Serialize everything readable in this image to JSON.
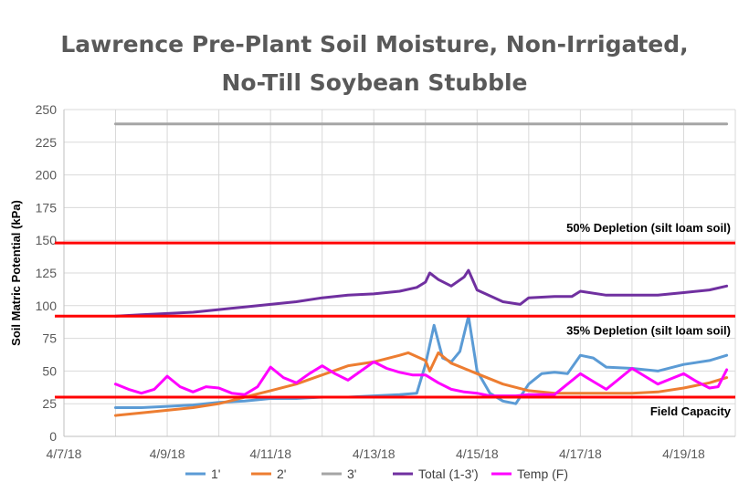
{
  "chart_data": {
    "type": "line",
    "title": [
      "Lawrence Pre-Plant Soil Moisture, Non-Irrigated,",
      "No-Till Soybean Stubble"
    ],
    "xlabel": "",
    "ylabel": "Soil Matric Potential (kPa)",
    "ylim": [
      0,
      250
    ],
    "yticks": [
      0,
      25,
      50,
      75,
      100,
      125,
      150,
      175,
      200,
      225,
      250
    ],
    "xlim": [
      "2018-04-07",
      "2018-04-20"
    ],
    "xticks": [
      "4/7/18",
      "4/9/18",
      "4/11/18",
      "4/13/18",
      "4/15/18",
      "4/17/18",
      "4/19/18"
    ],
    "grid": true,
    "legend_position": "bottom",
    "reference_lines": [
      {
        "value": 148,
        "label": "50% Depletion (silt loam soil)",
        "color": "#ff0000"
      },
      {
        "value": 92,
        "label": "35% Depletion (silt loam soil)",
        "color": "#ff0000"
      },
      {
        "value": 30,
        "label": "Field Capacity",
        "color": "#ff0000"
      }
    ],
    "series": [
      {
        "name": "1'",
        "color": "#5b9bd5",
        "points": [
          [
            "2018-04-08",
            22
          ],
          [
            "2018-04-08 12:00",
            22
          ],
          [
            "2018-04-09",
            23
          ],
          [
            "2018-04-09 12:00",
            24
          ],
          [
            "2018-04-10",
            26
          ],
          [
            "2018-04-10 12:00",
            27
          ],
          [
            "2018-04-11",
            29
          ],
          [
            "2018-04-11 12:00",
            29
          ],
          [
            "2018-04-12",
            30
          ],
          [
            "2018-04-12 12:00",
            30
          ],
          [
            "2018-04-13",
            31
          ],
          [
            "2018-04-13 12:00",
            32
          ],
          [
            "2018-04-13 20:00",
            33
          ],
          [
            "2018-04-14 00:00",
            55
          ],
          [
            "2018-04-14 04:00",
            85
          ],
          [
            "2018-04-14 08:00",
            60
          ],
          [
            "2018-04-14 12:00",
            57
          ],
          [
            "2018-04-14 16:00",
            65
          ],
          [
            "2018-04-14 20:00",
            92
          ],
          [
            "2018-04-15 00:00",
            50
          ],
          [
            "2018-04-15 06:00",
            33
          ],
          [
            "2018-04-15 12:00",
            27
          ],
          [
            "2018-04-15 18:00",
            25
          ],
          [
            "2018-04-16 00:00",
            40
          ],
          [
            "2018-04-16 06:00",
            48
          ],
          [
            "2018-04-16 12:00",
            49
          ],
          [
            "2018-04-16 18:00",
            48
          ],
          [
            "2018-04-17 00:00",
            62
          ],
          [
            "2018-04-17 06:00",
            60
          ],
          [
            "2018-04-17 12:00",
            53
          ],
          [
            "2018-04-18",
            52
          ],
          [
            "2018-04-18 12:00",
            50
          ],
          [
            "2018-04-19",
            55
          ],
          [
            "2018-04-19 12:00",
            58
          ],
          [
            "2018-04-19 20:00",
            62
          ]
        ]
      },
      {
        "name": "2'",
        "color": "#ed7d31",
        "points": [
          [
            "2018-04-08",
            16
          ],
          [
            "2018-04-08 12:00",
            18
          ],
          [
            "2018-04-09",
            20
          ],
          [
            "2018-04-09 12:00",
            22
          ],
          [
            "2018-04-10",
            25
          ],
          [
            "2018-04-10 12:00",
            30
          ],
          [
            "2018-04-11",
            35
          ],
          [
            "2018-04-11 12:00",
            40
          ],
          [
            "2018-04-12",
            47
          ],
          [
            "2018-04-12 12:00",
            54
          ],
          [
            "2018-04-13",
            57
          ],
          [
            "2018-04-13 12:00",
            62
          ],
          [
            "2018-04-13 16:00",
            64
          ],
          [
            "2018-04-14",
            58
          ],
          [
            "2018-04-14 02:00",
            50
          ],
          [
            "2018-04-14 06:00",
            64
          ],
          [
            "2018-04-14 12:00",
            56
          ],
          [
            "2018-04-15",
            48
          ],
          [
            "2018-04-15 12:00",
            40
          ],
          [
            "2018-04-16",
            35
          ],
          [
            "2018-04-16 12:00",
            33
          ],
          [
            "2018-04-17",
            33
          ],
          [
            "2018-04-17 12:00",
            33
          ],
          [
            "2018-04-18",
            33
          ],
          [
            "2018-04-18 12:00",
            34
          ],
          [
            "2018-04-19",
            37
          ],
          [
            "2018-04-19 12:00",
            41
          ],
          [
            "2018-04-19 20:00",
            45
          ]
        ]
      },
      {
        "name": "3'",
        "color": "#a5a5a5",
        "points": [
          [
            "2018-04-08",
            239
          ],
          [
            "2018-04-19 20:00",
            239
          ]
        ]
      },
      {
        "name": "Total (1-3')",
        "color": "#7030a0",
        "points": [
          [
            "2018-04-08",
            92
          ],
          [
            "2018-04-08 12:00",
            93
          ],
          [
            "2018-04-09",
            94
          ],
          [
            "2018-04-09 12:00",
            95
          ],
          [
            "2018-04-10",
            97
          ],
          [
            "2018-04-10 12:00",
            99
          ],
          [
            "2018-04-11",
            101
          ],
          [
            "2018-04-11 12:00",
            103
          ],
          [
            "2018-04-12",
            106
          ],
          [
            "2018-04-12 12:00",
            108
          ],
          [
            "2018-04-13",
            109
          ],
          [
            "2018-04-13 12:00",
            111
          ],
          [
            "2018-04-13 20:00",
            114
          ],
          [
            "2018-04-14 00:00",
            118
          ],
          [
            "2018-04-14 02:00",
            125
          ],
          [
            "2018-04-14 06:00",
            120
          ],
          [
            "2018-04-14 12:00",
            115
          ],
          [
            "2018-04-14 18:00",
            122
          ],
          [
            "2018-04-14 20:00",
            127
          ],
          [
            "2018-04-15 00:00",
            112
          ],
          [
            "2018-04-15 12:00",
            103
          ],
          [
            "2018-04-15 20:00",
            101
          ],
          [
            "2018-04-16 00:00",
            106
          ],
          [
            "2018-04-16 12:00",
            107
          ],
          [
            "2018-04-16 20:00",
            107
          ],
          [
            "2018-04-17 00:00",
            111
          ],
          [
            "2018-04-17 12:00",
            108
          ],
          [
            "2018-04-18",
            108
          ],
          [
            "2018-04-18 12:00",
            108
          ],
          [
            "2018-04-19",
            110
          ],
          [
            "2018-04-19 12:00",
            112
          ],
          [
            "2018-04-19 20:00",
            115
          ]
        ]
      },
      {
        "name": "Temp (F)",
        "color": "#ff00ff",
        "points": [
          [
            "2018-04-08",
            40
          ],
          [
            "2018-04-08 06:00",
            36
          ],
          [
            "2018-04-08 12:00",
            33
          ],
          [
            "2018-04-08 18:00",
            36
          ],
          [
            "2018-04-09 00:00",
            46
          ],
          [
            "2018-04-09 06:00",
            38
          ],
          [
            "2018-04-09 12:00",
            34
          ],
          [
            "2018-04-09 18:00",
            38
          ],
          [
            "2018-04-10 00:00",
            37
          ],
          [
            "2018-04-10 06:00",
            33
          ],
          [
            "2018-04-10 12:00",
            32
          ],
          [
            "2018-04-10 18:00",
            38
          ],
          [
            "2018-04-11 00:00",
            53
          ],
          [
            "2018-04-11 06:00",
            45
          ],
          [
            "2018-04-11 12:00",
            41
          ],
          [
            "2018-04-11 18:00",
            48
          ],
          [
            "2018-04-12 00:00",
            54
          ],
          [
            "2018-04-12 06:00",
            48
          ],
          [
            "2018-04-12 12:00",
            43
          ],
          [
            "2018-04-12 18:00",
            50
          ],
          [
            "2018-04-13 00:00",
            57
          ],
          [
            "2018-04-13 06:00",
            52
          ],
          [
            "2018-04-13 12:00",
            49
          ],
          [
            "2018-04-13 18:00",
            47
          ],
          [
            "2018-04-14 00:00",
            47
          ],
          [
            "2018-04-14 06:00",
            41
          ],
          [
            "2018-04-14 12:00",
            36
          ],
          [
            "2018-04-14 18:00",
            34
          ],
          [
            "2018-04-15 00:00",
            33
          ],
          [
            "2018-04-15 06:00",
            31
          ],
          [
            "2018-04-15 12:00",
            31
          ],
          [
            "2018-04-15 18:00",
            31
          ],
          [
            "2018-04-16 00:00",
            32
          ],
          [
            "2018-04-16 06:00",
            32
          ],
          [
            "2018-04-16 12:00",
            32
          ],
          [
            "2018-04-16 18:00",
            40
          ],
          [
            "2018-04-17 00:00",
            48
          ],
          [
            "2018-04-17 06:00",
            42
          ],
          [
            "2018-04-17 12:00",
            36
          ],
          [
            "2018-04-17 18:00",
            44
          ],
          [
            "2018-04-18 00:00",
            52
          ],
          [
            "2018-04-18 06:00",
            46
          ],
          [
            "2018-04-18 12:00",
            40
          ],
          [
            "2018-04-18 18:00",
            44
          ],
          [
            "2018-04-19 00:00",
            48
          ],
          [
            "2018-04-19 06:00",
            42
          ],
          [
            "2018-04-19 12:00",
            37
          ],
          [
            "2018-04-19 16:00",
            38
          ],
          [
            "2018-04-19 20:00",
            51
          ]
        ]
      }
    ]
  }
}
